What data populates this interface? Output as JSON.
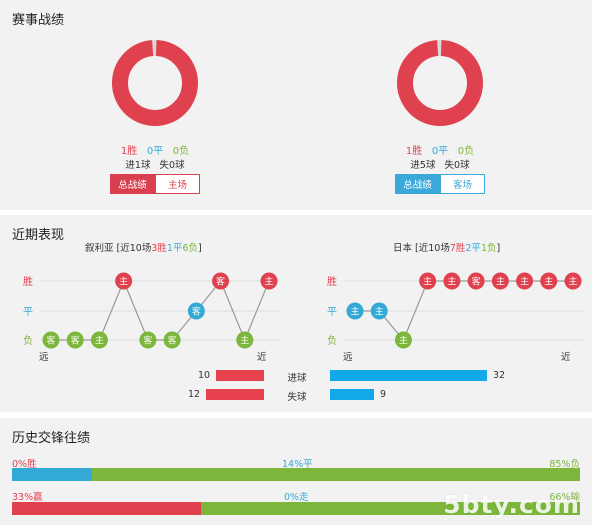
{
  "match_record": {
    "title": "赛事战绩",
    "left": {
      "wins": "1胜",
      "draws": "0平",
      "losses": "0负",
      "goals_for": "进1球",
      "goals_against": "失0球",
      "tab_total": "总战绩",
      "tab_side": "主场",
      "win_ratio": 1.0
    },
    "right": {
      "wins": "1胜",
      "draws": "0平",
      "losses": "0负",
      "goals_for": "进5球",
      "goals_against": "失0球",
      "tab_total": "总战绩",
      "tab_side": "客场",
      "win_ratio": 1.0
    }
  },
  "recent_form": {
    "title": "近期表现",
    "axis_labels": {
      "win": "胜",
      "draw": "平",
      "loss": "负",
      "far": "远",
      "near": "近"
    },
    "left_team": {
      "name": "叙利亚",
      "summary_prefix": "[近10场",
      "wins": "3胜",
      "draws": "1平",
      "losses": "6负",
      "summary_suffix": "]",
      "results": [
        {
          "result": "loss",
          "venue": "客"
        },
        {
          "result": "loss",
          "venue": "客"
        },
        {
          "result": "loss",
          "venue": "主"
        },
        {
          "result": "win",
          "venue": "主"
        },
        {
          "result": "loss",
          "venue": "客"
        },
        {
          "result": "loss",
          "venue": "客"
        },
        {
          "result": "draw",
          "venue": "客"
        },
        {
          "result": "win",
          "venue": "客"
        },
        {
          "result": "loss",
          "venue": "主"
        },
        {
          "result": "win",
          "venue": "主"
        }
      ]
    },
    "right_team": {
      "name": "日本",
      "summary_prefix": "[近10场",
      "wins": "7胜",
      "draws": "2平",
      "losses": "1负",
      "summary_suffix": "]",
      "results": [
        {
          "result": "draw",
          "venue": "主"
        },
        {
          "result": "draw",
          "venue": "主"
        },
        {
          "result": "loss",
          "venue": "主"
        },
        {
          "result": "win",
          "venue": "主"
        },
        {
          "result": "win",
          "venue": "主"
        },
        {
          "result": "win",
          "venue": "客"
        },
        {
          "result": "win",
          "venue": "主"
        },
        {
          "result": "win",
          "venue": "主"
        },
        {
          "result": "win",
          "venue": "主"
        },
        {
          "result": "win",
          "venue": "主"
        }
      ]
    },
    "goals_scored": {
      "label": "进球",
      "left": "10",
      "right": "32",
      "left_val": 10,
      "right_val": 32
    },
    "goals_conceded": {
      "label": "失球",
      "left": "12",
      "right": "9",
      "left_val": 12,
      "right_val": 9
    }
  },
  "history": {
    "title": "历史交锋往绩",
    "row1": {
      "left": "0%胜",
      "mid": "14%平",
      "right": "85%负",
      "p1": 0,
      "p2": 14,
      "p3": 85
    },
    "row2": {
      "left": "33%赢",
      "mid": "0%走",
      "right": "66%输",
      "p1": 33,
      "p2": 0,
      "p3": 66
    }
  },
  "watermark": "5bty.com",
  "colors": {
    "win": "#e0414f",
    "draw": "#33a9d6",
    "loss": "#7cb63a",
    "bar_red": "#e8424f",
    "bar_blue": "#12a9ea"
  }
}
